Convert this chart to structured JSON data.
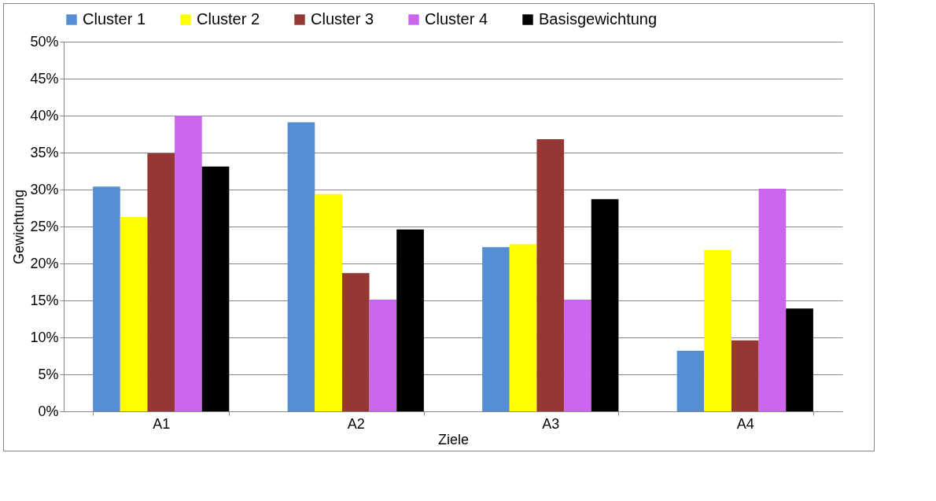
{
  "chart_data": {
    "type": "bar",
    "xlabel": "Ziele",
    "ylabel": "Gewichtung",
    "categories": [
      "A1",
      "A2",
      "A3",
      "A4"
    ],
    "series": [
      {
        "name": "Cluster 1",
        "color": "#558ed5",
        "values": [
          30.4,
          39.1,
          22.2,
          8.2
        ]
      },
      {
        "name": "Cluster 2",
        "color": "#ffff00",
        "values": [
          26.3,
          29.4,
          22.6,
          21.8
        ]
      },
      {
        "name": "Cluster 3",
        "color": "#953735",
        "values": [
          34.9,
          18.7,
          36.8,
          9.6
        ]
      },
      {
        "name": "Cluster 4",
        "color": "#cc66ee",
        "values": [
          40.0,
          15.1,
          15.1,
          30.1
        ]
      },
      {
        "name": "Basisgewichtung",
        "color": "#000000",
        "values": [
          33.1,
          24.6,
          28.7,
          13.9
        ]
      }
    ],
    "ylim": [
      0,
      50
    ],
    "yticks": [
      {
        "value": 0,
        "label": "0%"
      },
      {
        "value": 5,
        "label": "5%"
      },
      {
        "value": 10,
        "label": "10%"
      },
      {
        "value": 15,
        "label": "15%"
      },
      {
        "value": 20,
        "label": "20%"
      },
      {
        "value": 25,
        "label": "25%"
      },
      {
        "value": 30,
        "label": "30%"
      },
      {
        "value": 35,
        "label": "35%"
      },
      {
        "value": 40,
        "label": "40%"
      },
      {
        "value": 45,
        "label": "45%"
      },
      {
        "value": 50,
        "label": "50%"
      }
    ],
    "grid": "y",
    "legend": "top"
  }
}
